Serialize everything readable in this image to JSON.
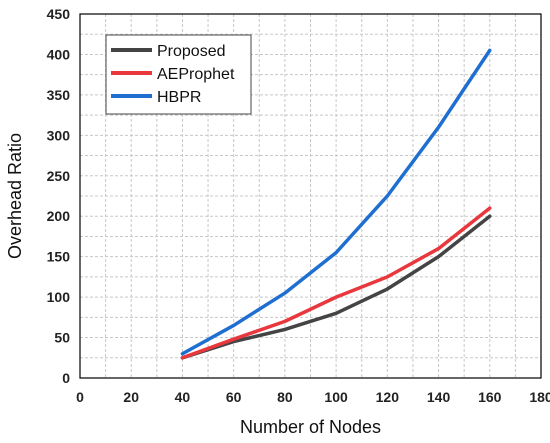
{
  "chart_data": {
    "type": "line",
    "title": "",
    "xlabel": "Number of Nodes",
    "ylabel": "Overhead Ratio",
    "xlim": [
      0,
      180
    ],
    "ylim": [
      0,
      450
    ],
    "xticks": [
      0,
      20,
      40,
      60,
      80,
      100,
      120,
      140,
      160,
      180
    ],
    "yticks": [
      0,
      50,
      100,
      150,
      200,
      250,
      300,
      350,
      400,
      450
    ],
    "grid": true,
    "legend_position": "top-left",
    "x": [
      40,
      60,
      80,
      100,
      120,
      140,
      160
    ],
    "series": [
      {
        "name": "Proposed",
        "color": "#444444",
        "values": [
          25,
          45,
          60,
          80,
          110,
          150,
          200
        ]
      },
      {
        "name": "AEProphet",
        "color": "#e8383d",
        "values": [
          25,
          48,
          70,
          100,
          125,
          160,
          210
        ]
      },
      {
        "name": "HBPR",
        "color": "#1f6fd1",
        "values": [
          30,
          65,
          105,
          155,
          225,
          310,
          405
        ]
      }
    ]
  }
}
